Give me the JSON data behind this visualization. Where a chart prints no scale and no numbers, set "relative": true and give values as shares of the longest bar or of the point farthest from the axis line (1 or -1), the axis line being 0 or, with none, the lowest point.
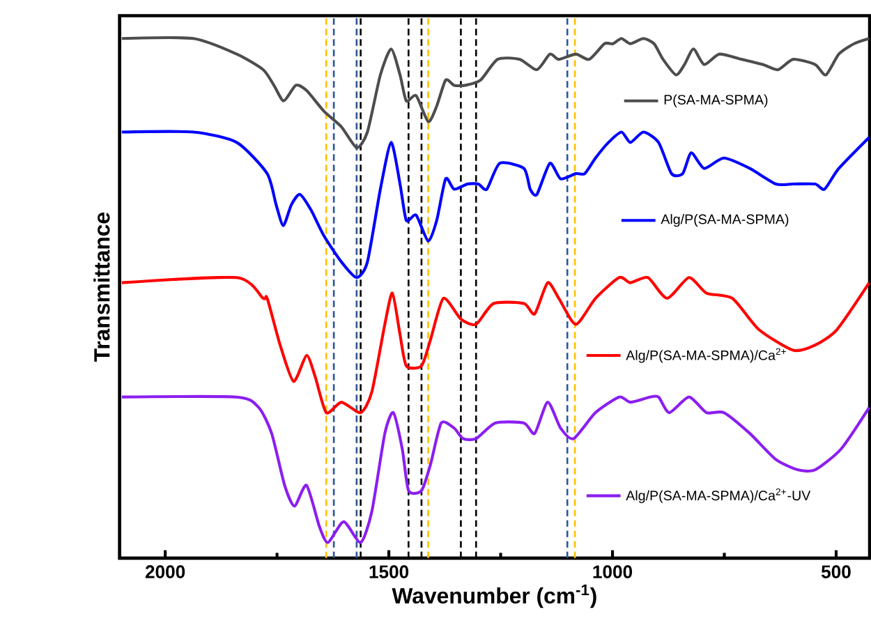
{
  "chart_data": {
    "type": "line",
    "relative": true,
    "xlabel": "Wavenumber (cm$^{-1}$)",
    "ylabel": "Transmittance",
    "xlim": [
      2102,
      425
    ],
    "xticks": [
      2000,
      {
        "value": 1750,
        "label": null
      },
      1500,
      {
        "value": 1250,
        "label": null
      },
      1000,
      {
        "value": 750,
        "label": null
      },
      500
    ],
    "legend": "right",
    "marker": "none",
    "line_style": "solid",
    "series": [
      {
        "name": "P(SA-MA-SPMA)",
        "color": "#4d4d4d",
        "x": [
          2097,
          1937,
          1840,
          1781,
          1757,
          1735,
          1708,
          1684,
          1645,
          1606,
          1572,
          1548,
          1519,
          1495,
          1475,
          1461,
          1439,
          1412,
          1393,
          1373,
          1354,
          1329,
          1295,
          1257,
          1208,
          1169,
          1140,
          1120,
          1082,
          1052,
          1018,
          999,
          980,
          960,
          931,
          907,
          887,
          858,
          839,
          819,
          795,
          761,
          712,
          664,
          630,
          596,
          547,
          523,
          494,
          460,
          426
        ],
        "values": [
          1.0,
          1.0,
          0.97,
          0.94,
          0.91,
          0.88,
          0.91,
          0.9,
          0.86,
          0.83,
          0.79,
          0.82,
          0.93,
          0.98,
          0.93,
          0.88,
          0.89,
          0.84,
          0.87,
          0.92,
          0.91,
          0.91,
          0.92,
          0.96,
          0.96,
          0.94,
          0.97,
          0.96,
          0.97,
          0.96,
          0.99,
          0.99,
          1.0,
          0.99,
          1.0,
          0.99,
          0.96,
          0.93,
          0.95,
          0.98,
          0.95,
          0.97,
          0.96,
          0.95,
          0.94,
          0.96,
          0.95,
          0.93,
          0.97,
          0.99,
          1.0
        ]
      },
      {
        "name": "Alg/P(SA-MA-SPMA)",
        "color": "#0000ff",
        "x": [
          2097,
          1937,
          1840,
          1772,
          1752,
          1736,
          1718,
          1699,
          1674,
          1645,
          1606,
          1572,
          1548,
          1519,
          1495,
          1475,
          1461,
          1439,
          1412,
          1393,
          1373,
          1354,
          1324,
          1300,
          1281,
          1252,
          1198,
          1184,
          1169,
          1140,
          1116,
          1082,
          1062,
          1038,
          1009,
          980,
          960,
          931,
          897,
          868,
          843,
          824,
          795,
          751,
          693,
          635,
          596,
          547,
          526,
          494,
          426
        ],
        "values": [
          0.82,
          0.82,
          0.8,
          0.74,
          0.68,
          0.64,
          0.68,
          0.7,
          0.67,
          0.62,
          0.57,
          0.54,
          0.57,
          0.71,
          0.8,
          0.72,
          0.65,
          0.66,
          0.61,
          0.65,
          0.73,
          0.71,
          0.72,
          0.72,
          0.71,
          0.76,
          0.75,
          0.71,
          0.7,
          0.76,
          0.73,
          0.74,
          0.74,
          0.77,
          0.8,
          0.82,
          0.8,
          0.82,
          0.8,
          0.74,
          0.74,
          0.78,
          0.75,
          0.77,
          0.75,
          0.72,
          0.72,
          0.72,
          0.71,
          0.75,
          0.81
        ]
      },
      {
        "name": "Alg/P(SA-MA-SPMA)/Ca$^{2+}$",
        "color": "#ff0000",
        "x": [
          2097,
          1840,
          1781,
          1772,
          1743,
          1713,
          1684,
          1665,
          1640,
          1606,
          1563,
          1538,
          1509,
          1492,
          1475,
          1461,
          1427,
          1407,
          1378,
          1339,
          1305,
          1266,
          1198,
          1174,
          1145,
          1120,
          1082,
          1038,
          985,
          960,
          921,
          878,
          829,
          790,
          732,
          673,
          596,
          547,
          498,
          426
        ],
        "values": [
          0.53,
          0.54,
          0.5,
          0.5,
          0.41,
          0.34,
          0.39,
          0.35,
          0.28,
          0.3,
          0.28,
          0.32,
          0.45,
          0.51,
          0.43,
          0.37,
          0.37,
          0.42,
          0.5,
          0.46,
          0.45,
          0.49,
          0.49,
          0.47,
          0.53,
          0.5,
          0.45,
          0.5,
          0.54,
          0.53,
          0.54,
          0.5,
          0.54,
          0.51,
          0.5,
          0.44,
          0.4,
          0.41,
          0.44,
          0.53
        ]
      },
      {
        "name": "Alg/P(SA-MA-SPMA)/Ca$^{2+}$-UV",
        "color": "#8b1ef0",
        "x": [
          2097,
          1840,
          1791,
          1762,
          1733,
          1711,
          1684,
          1655,
          1636,
          1601,
          1563,
          1538,
          1509,
          1490,
          1470,
          1456,
          1427,
          1407,
          1383,
          1354,
          1334,
          1305,
          1262,
          1198,
          1174,
          1145,
          1116,
          1087,
          1038,
          985,
          960,
          916,
          897,
          873,
          829,
          790,
          751,
          693,
          635,
          586,
          547,
          489,
          426
        ],
        "values": [
          0.31,
          0.31,
          0.29,
          0.24,
          0.14,
          0.1,
          0.14,
          0.06,
          0.03,
          0.07,
          0.03,
          0.09,
          0.24,
          0.28,
          0.21,
          0.13,
          0.13,
          0.18,
          0.26,
          0.25,
          0.23,
          0.23,
          0.26,
          0.26,
          0.24,
          0.3,
          0.25,
          0.23,
          0.28,
          0.31,
          0.3,
          0.31,
          0.31,
          0.28,
          0.31,
          0.28,
          0.28,
          0.24,
          0.19,
          0.17,
          0.17,
          0.21,
          0.29
        ]
      }
    ],
    "ref_lines": [
      {
        "axis": "x",
        "value": 1623,
        "color": "#2f5597",
        "line_style": "dashed"
      },
      {
        "axis": "x",
        "value": 1572,
        "color": "#2f5597",
        "line_style": "dashed"
      },
      {
        "axis": "x",
        "value": 1101,
        "color": "#2f5597",
        "line_style": "dashed"
      },
      {
        "axis": "x",
        "value": 1640,
        "color": "#ffc000",
        "line_style": "dashed"
      },
      {
        "axis": "x",
        "value": 1412,
        "color": "#ffc000",
        "line_style": "dashed"
      },
      {
        "axis": "x",
        "value": 1084,
        "color": "#ffc000",
        "line_style": "dashed"
      },
      {
        "axis": "x",
        "value": 1563,
        "color": "#000000",
        "line_style": "dashed"
      },
      {
        "axis": "x",
        "value": 1456,
        "color": "#000000",
        "line_style": "dashed"
      },
      {
        "axis": "x",
        "value": 1427,
        "color": "#000000",
        "line_style": "dashed"
      },
      {
        "axis": "x",
        "value": 1339,
        "color": "#000000",
        "line_style": "dashed"
      },
      {
        "axis": "x",
        "value": 1305,
        "color": "#000000",
        "line_style": "dashed"
      }
    ]
  }
}
